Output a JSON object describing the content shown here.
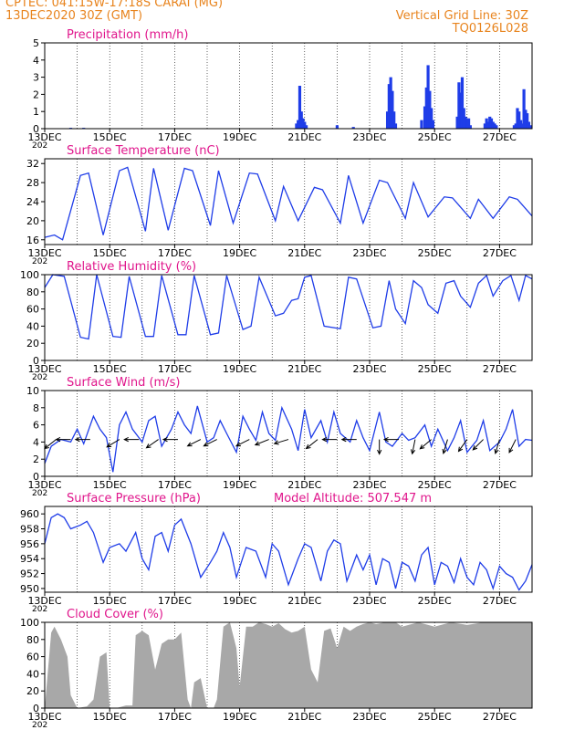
{
  "header": {
    "line1": "CPTEC:   041:15W-17:18S   CARAI (MG)",
    "line2": "13DEC2020 30Z (GMT)",
    "grid_note": "Vertical Grid Line: 30Z",
    "run_id": "TQ0126L028"
  },
  "colors": {
    "header": "#e8841e",
    "title": "#e0168c",
    "series": "#1f3de8",
    "cloud": "#a8a8a8",
    "axis": "#000000",
    "grid": "#000000"
  },
  "x_axis": {
    "start": "13DEC",
    "end": "28DEC",
    "tick_labels": [
      "13DEC",
      "15DEC",
      "17DEC",
      "19DEC",
      "21DEC",
      "23DEC",
      "25DEC",
      "27DEC"
    ],
    "tick_days": [
      13,
      15,
      17,
      19,
      21,
      23,
      25,
      27
    ],
    "fragment": "202"
  },
  "chart_data": [
    {
      "type": "bar",
      "title": "Precipitation (mm/h)",
      "ylim": [
        0,
        5
      ],
      "yticks": [
        0,
        1,
        2,
        3,
        4,
        5
      ],
      "series": [
        {
          "x": [
            13.8,
            14.2,
            20.75,
            20.8,
            20.85,
            20.9,
            20.95,
            21.0,
            21.05,
            22.0,
            22.5,
            23.55,
            23.6,
            23.65,
            23.7,
            23.75,
            23.8,
            24.6,
            24.7,
            24.75,
            24.8,
            24.85,
            24.9,
            24.95,
            25.7,
            25.75,
            25.8,
            25.85,
            25.9,
            25.95,
            26.0,
            26.05,
            26.1,
            26.55,
            26.6,
            26.65,
            26.7,
            26.75,
            26.8,
            26.85,
            26.9,
            27.45,
            27.5,
            27.55,
            27.6,
            27.65,
            27.7,
            27.75,
            27.8,
            27.85,
            27.9,
            27.95
          ],
          "values": [
            0.05,
            0.05,
            0.3,
            0.5,
            2.5,
            1.0,
            0.6,
            0.4,
            0.2,
            0.2,
            0.1,
            1.0,
            2.6,
            3.0,
            2.2,
            1.0,
            0.3,
            0.5,
            1.3,
            2.4,
            3.7,
            2.2,
            1.2,
            0.5,
            0.7,
            2.7,
            2.1,
            3.0,
            1.2,
            0.7,
            0.6,
            0.6,
            0.2,
            0.3,
            0.6,
            0.4,
            0.7,
            0.6,
            0.4,
            0.3,
            0.2,
            0.2,
            0.3,
            1.2,
            1.0,
            0.5,
            0.3,
            2.3,
            1.1,
            0.9,
            0.4,
            0.2
          ]
        }
      ]
    },
    {
      "type": "line",
      "title": "Surface Temperature (nC)",
      "ylim": [
        15,
        33
      ],
      "yticks": [
        16,
        20,
        24,
        28,
        32
      ],
      "series": [
        {
          "x": [
            13.0,
            13.3,
            13.55,
            14.1,
            14.35,
            14.8,
            15.3,
            15.55,
            16.1,
            16.35,
            16.8,
            17.3,
            17.55,
            18.1,
            18.35,
            18.8,
            19.3,
            19.55,
            20.1,
            20.35,
            20.8,
            21.3,
            21.55,
            22.1,
            22.35,
            22.8,
            23.3,
            23.55,
            24.1,
            24.35,
            24.8,
            25.3,
            25.55,
            26.1,
            26.35,
            26.8,
            27.3,
            27.55,
            28.0
          ],
          "values": [
            16.5,
            17.0,
            16.0,
            29.5,
            30.0,
            17.0,
            30.5,
            31.2,
            17.8,
            31.0,
            18.0,
            31.0,
            30.5,
            19.0,
            30.5,
            19.5,
            30.0,
            29.8,
            20.0,
            27.2,
            20.0,
            27.0,
            26.5,
            19.5,
            29.5,
            19.5,
            28.5,
            28.0,
            20.5,
            28.0,
            20.8,
            25.0,
            24.8,
            20.5,
            24.5,
            20.5,
            25.0,
            24.5,
            21.0
          ]
        }
      ]
    },
    {
      "type": "line",
      "title": "Relative Humidity (%)",
      "ylim": [
        0,
        100
      ],
      "yticks": [
        0,
        20,
        40,
        60,
        80,
        100
      ],
      "series": [
        {
          "x": [
            13.0,
            13.25,
            13.6,
            14.1,
            14.35,
            14.6,
            15.1,
            15.35,
            15.6,
            16.1,
            16.35,
            16.6,
            17.1,
            17.35,
            17.6,
            18.1,
            18.35,
            18.6,
            19.1,
            19.35,
            19.6,
            20.1,
            20.35,
            20.6,
            20.8,
            21.0,
            21.2,
            21.6,
            22.1,
            22.35,
            22.6,
            23.1,
            23.35,
            23.6,
            23.8,
            24.1,
            24.35,
            24.6,
            24.8,
            25.1,
            25.35,
            25.6,
            25.8,
            26.1,
            26.35,
            26.6,
            26.8,
            27.1,
            27.35,
            27.6,
            27.8,
            28.0
          ],
          "values": [
            85,
            100,
            98,
            27,
            25,
            100,
            28,
            27,
            98,
            28,
            28,
            99,
            30,
            30,
            99,
            30,
            32,
            99,
            36,
            40,
            97,
            52,
            55,
            70,
            72,
            97,
            99,
            40,
            37,
            97,
            95,
            38,
            40,
            93,
            60,
            43,
            93,
            85,
            65,
            55,
            90,
            93,
            75,
            62,
            90,
            99,
            75,
            93,
            99,
            70,
            99,
            95
          ]
        }
      ]
    },
    {
      "type": "line",
      "title": "Surface Wind (m/s)",
      "ylim": [
        0,
        10
      ],
      "yticks": [
        0,
        2,
        4,
        6,
        8,
        10
      ],
      "series": [
        {
          "x": [
            13.0,
            13.2,
            13.5,
            13.8,
            14.0,
            14.2,
            14.5,
            14.7,
            14.9,
            15.1,
            15.3,
            15.5,
            15.7,
            16.0,
            16.2,
            16.4,
            16.6,
            16.9,
            17.1,
            17.3,
            17.5,
            17.7,
            18.0,
            18.2,
            18.4,
            18.6,
            18.9,
            19.1,
            19.3,
            19.5,
            19.7,
            19.9,
            20.1,
            20.3,
            20.6,
            20.8,
            21.0,
            21.2,
            21.5,
            21.7,
            21.9,
            22.1,
            22.4,
            22.6,
            22.8,
            23.0,
            23.3,
            23.5,
            23.7,
            24.0,
            24.2,
            24.4,
            24.7,
            24.9,
            25.1,
            25.4,
            25.6,
            25.8,
            26.0,
            26.3,
            26.5,
            26.7,
            27.0,
            27.2,
            27.4,
            27.6,
            27.8,
            28.0
          ],
          "values": [
            1.5,
            3.5,
            4.3,
            4.0,
            5.5,
            3.8,
            7.0,
            5.5,
            4.5,
            0.5,
            6.0,
            7.5,
            5.5,
            4.0,
            6.5,
            7.0,
            3.5,
            5.5,
            7.5,
            6.0,
            5.0,
            8.2,
            4.0,
            4.5,
            6.5,
            5.0,
            2.8,
            7.0,
            5.5,
            4.2,
            7.5,
            5.0,
            4.2,
            8.0,
            5.5,
            3.0,
            7.8,
            4.5,
            6.5,
            4.0,
            7.5,
            5.0,
            4.0,
            6.5,
            4.5,
            3.0,
            7.5,
            4.0,
            3.5,
            5.0,
            4.2,
            4.5,
            6.0,
            3.5,
            5.5,
            3.0,
            4.5,
            6.5,
            2.8,
            4.2,
            6.5,
            3.0,
            4.0,
            5.5,
            7.8,
            3.5,
            4.3,
            4.2
          ]
        }
      ],
      "arrows": [
        {
          "x": 13.35,
          "u": -1.0,
          "v": -0.8
        },
        {
          "x": 13.8,
          "u": -1.0,
          "v": 0.0
        },
        {
          "x": 14.4,
          "u": -1.0,
          "v": 0.0
        },
        {
          "x": 15.3,
          "u": -1.0,
          "v": -0.6
        },
        {
          "x": 15.9,
          "u": -1.0,
          "v": 0.0
        },
        {
          "x": 16.5,
          "u": -1.0,
          "v": -0.7
        },
        {
          "x": 17.1,
          "u": -1.0,
          "v": 0.0
        },
        {
          "x": 17.8,
          "u": -1.0,
          "v": -0.5
        },
        {
          "x": 18.3,
          "u": -1.0,
          "v": -0.5
        },
        {
          "x": 19.3,
          "u": -1.0,
          "v": -0.5
        },
        {
          "x": 19.9,
          "u": -1.0,
          "v": -0.4
        },
        {
          "x": 20.5,
          "u": -1.0,
          "v": -0.3
        },
        {
          "x": 21.4,
          "u": -1.0,
          "v": -0.8
        },
        {
          "x": 22.0,
          "u": -1.0,
          "v": 0.0
        },
        {
          "x": 22.6,
          "u": -1.0,
          "v": 0.0
        },
        {
          "x": 23.3,
          "u": 0.0,
          "v": -1.0
        },
        {
          "x": 23.9,
          "u": -0.8,
          "v": 0.0
        },
        {
          "x": 24.4,
          "u": -0.2,
          "v": -1.0
        },
        {
          "x": 24.9,
          "u": -0.6,
          "v": -0.5
        },
        {
          "x": 25.4,
          "u": -0.3,
          "v": -1.0
        },
        {
          "x": 26.0,
          "u": -0.5,
          "v": -0.7
        },
        {
          "x": 26.5,
          "u": -0.5,
          "v": -0.5
        },
        {
          "x": 27.0,
          "u": -0.3,
          "v": -1.0
        },
        {
          "x": 27.5,
          "u": -0.4,
          "v": -0.8
        }
      ]
    },
    {
      "type": "line",
      "title": "Surface Pressure (hPa)",
      "annotation": "Model Altitude: 507.547 m",
      "ylim": [
        949.5,
        961
      ],
      "yticks": [
        950,
        952,
        954,
        956,
        958,
        960
      ],
      "series": [
        {
          "x": [
            13.0,
            13.2,
            13.4,
            13.6,
            13.8,
            14.1,
            14.3,
            14.5,
            14.8,
            15.0,
            15.3,
            15.5,
            15.8,
            16.0,
            16.2,
            16.4,
            16.6,
            16.8,
            17.0,
            17.2,
            17.5,
            17.8,
            18.1,
            18.3,
            18.5,
            18.7,
            18.9,
            19.2,
            19.5,
            19.8,
            20.0,
            20.2,
            20.5,
            20.8,
            21.0,
            21.2,
            21.5,
            21.7,
            21.9,
            22.1,
            22.3,
            22.6,
            22.8,
            23.0,
            23.2,
            23.4,
            23.6,
            23.8,
            24.0,
            24.2,
            24.4,
            24.6,
            24.8,
            25.0,
            25.2,
            25.4,
            25.6,
            25.8,
            26.0,
            26.2,
            26.4,
            26.6,
            26.8,
            27.0,
            27.2,
            27.4,
            27.6,
            27.8,
            28.0
          ],
          "values": [
            956.0,
            959.5,
            960.0,
            959.5,
            958.0,
            958.5,
            959.0,
            957.5,
            953.5,
            955.5,
            956.0,
            955.0,
            957.5,
            954.0,
            952.5,
            957.0,
            957.5,
            955.0,
            958.5,
            959.3,
            956.0,
            951.5,
            953.5,
            955.0,
            957.5,
            955.5,
            951.5,
            955.5,
            955.0,
            951.5,
            956.0,
            955.0,
            950.5,
            954.0,
            956.0,
            955.5,
            951.0,
            955.0,
            956.5,
            956.0,
            951.0,
            954.5,
            952.5,
            954.5,
            950.5,
            954.0,
            953.5,
            950.0,
            953.5,
            953.0,
            951.0,
            954.5,
            955.5,
            950.5,
            953.5,
            953.0,
            950.8,
            954.0,
            951.5,
            950.5,
            953.5,
            952.5,
            950.0,
            953.0,
            952.0,
            951.5,
            949.8,
            951.0,
            953.2
          ]
        }
      ]
    },
    {
      "type": "area",
      "title": "Cloud Cover (%)",
      "ylim": [
        0,
        100
      ],
      "yticks": [
        0,
        20,
        40,
        60,
        80,
        100
      ],
      "series": [
        {
          "x": [
            13.0,
            13.2,
            13.3,
            13.5,
            13.7,
            13.8,
            14.0,
            14.3,
            14.5,
            14.7,
            14.9,
            15.0,
            15.2,
            15.5,
            15.7,
            15.8,
            16.0,
            16.2,
            16.4,
            16.6,
            16.8,
            17.0,
            17.2,
            17.4,
            17.5,
            17.6,
            17.8,
            18.0,
            18.2,
            18.3,
            18.5,
            18.7,
            18.9,
            19.0,
            19.2,
            19.4,
            19.6,
            19.8,
            20.0,
            20.2,
            20.4,
            20.6,
            20.8,
            21.0,
            21.2,
            21.4,
            21.6,
            21.8,
            22.0,
            22.2,
            22.4,
            22.6,
            22.8,
            23.0,
            23.2,
            23.5,
            23.8,
            24.0,
            24.5,
            25.0,
            25.5,
            26.0,
            26.5,
            27.0,
            27.5,
            28.0
          ],
          "values": [
            0,
            88,
            95,
            80,
            60,
            15,
            0,
            2,
            10,
            60,
            65,
            0,
            0,
            3,
            3,
            85,
            90,
            85,
            45,
            75,
            80,
            80,
            88,
            10,
            0,
            30,
            35,
            0,
            0,
            10,
            95,
            100,
            70,
            25,
            95,
            95,
            100,
            98,
            95,
            99,
            92,
            88,
            90,
            95,
            45,
            30,
            90,
            93,
            70,
            95,
            90,
            95,
            98,
            100,
            98,
            100,
            100,
            95,
            100,
            95,
            100,
            97,
            100,
            100,
            100,
            100
          ]
        }
      ]
    }
  ]
}
